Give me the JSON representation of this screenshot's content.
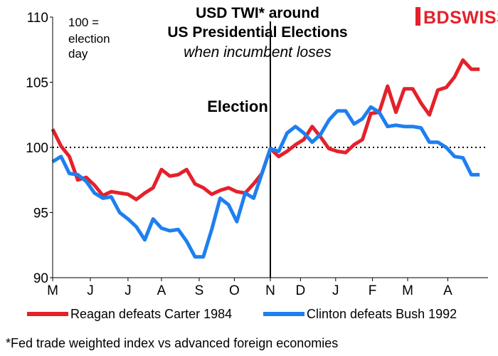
{
  "logo": {
    "brand_text": "BDSWISS",
    "accent": "#e4212b"
  },
  "footnote": "*Fed  trade weighted index vs advanced foreign economies",
  "chart_data": {
    "type": "line",
    "title_lines": [
      "USD TWI* around",
      "US Presidential Elections"
    ],
    "subtitle": "when incumbent loses",
    "note_lines": [
      "100 =",
      "election",
      "day"
    ],
    "event_label": "Election",
    "xlabel": "",
    "ylabel": "",
    "ylim": [
      90,
      110
    ],
    "yticks": [
      90,
      95,
      100,
      105,
      110
    ],
    "reference_line": 100,
    "event_week": 0,
    "xlim": [
      -26,
      26
    ],
    "x_ticks": [
      {
        "label": "M",
        "week": -26
      },
      {
        "label": "J",
        "week": -21.5
      },
      {
        "label": "J",
        "week": -17
      },
      {
        "label": "A",
        "week": -13
      },
      {
        "label": "S",
        "week": -8.5
      },
      {
        "label": "O",
        "week": -4.3
      },
      {
        "label": "N",
        "week": 0
      },
      {
        "label": "D",
        "week": 3.6
      },
      {
        "label": "J",
        "week": 7.8
      },
      {
        "label": "F",
        "week": 12.2
      },
      {
        "label": "M",
        "week": 16.4
      },
      {
        "label": "A",
        "week": 21.2
      }
    ],
    "grid": false,
    "legend_position": "bottom",
    "series": [
      {
        "name": "Reagan defeats Carter 1984",
        "color": "#e4212b",
        "x": [
          -26,
          -25,
          -24,
          -23,
          -22,
          -21,
          -20,
          -19,
          -18,
          -17,
          -16,
          -15,
          -14,
          -13,
          -12,
          -11,
          -10,
          -9,
          -8,
          -7,
          -6,
          -5,
          -4,
          -3,
          -2,
          -1,
          0,
          1,
          2,
          3,
          4,
          5,
          6,
          7,
          8,
          9,
          10,
          11,
          12,
          13,
          14,
          15,
          16,
          17,
          18,
          19,
          20,
          21,
          22,
          23,
          24,
          25
        ],
        "values": [
          101.4,
          100.1,
          99.3,
          97.5,
          97.7,
          97.1,
          96.3,
          96.6,
          96.5,
          96.4,
          96.0,
          96.5,
          96.9,
          98.3,
          97.8,
          97.9,
          98.3,
          97.2,
          96.9,
          96.4,
          96.7,
          96.9,
          96.6,
          96.5,
          97.2,
          98.0,
          99.9,
          99.3,
          99.7,
          100.2,
          100.6,
          101.6,
          100.8,
          99.9,
          99.7,
          99.6,
          100.2,
          100.6,
          102.6,
          102.7,
          104.7,
          102.7,
          104.5,
          104.5,
          103.4,
          102.5,
          104.4,
          104.6,
          105.4,
          106.7,
          106.0,
          106.0
        ]
      },
      {
        "name": "Clinton defeats Bush 1992",
        "color": "#1e7fef",
        "x": [
          -26,
          -25,
          -24,
          -23,
          -22,
          -21,
          -20,
          -19,
          -18,
          -17,
          -16,
          -15,
          -14,
          -13,
          -12,
          -11,
          -10,
          -9,
          -8,
          -7,
          -6,
          -5,
          -4,
          -3,
          -2,
          -1,
          0,
          1,
          2,
          3,
          4,
          5,
          6,
          7,
          8,
          9,
          10,
          11,
          12,
          13,
          14,
          15,
          16,
          17,
          18,
          19,
          20,
          21,
          22,
          23,
          24,
          25
        ],
        "values": [
          98.9,
          99.3,
          98.0,
          97.9,
          97.4,
          96.5,
          96.1,
          96.2,
          95.0,
          94.5,
          93.9,
          92.9,
          94.5,
          93.8,
          93.6,
          93.7,
          92.8,
          91.6,
          91.6,
          93.7,
          96.1,
          95.6,
          94.3,
          96.5,
          96.1,
          98.0,
          99.9,
          99.7,
          101.1,
          101.6,
          101.1,
          100.4,
          101.0,
          102.1,
          102.8,
          102.8,
          101.8,
          102.2,
          103.1,
          102.7,
          101.6,
          101.7,
          101.6,
          101.6,
          101.5,
          100.4,
          100.4,
          100.0,
          99.3,
          99.2,
          97.9,
          97.9
        ]
      }
    ]
  }
}
